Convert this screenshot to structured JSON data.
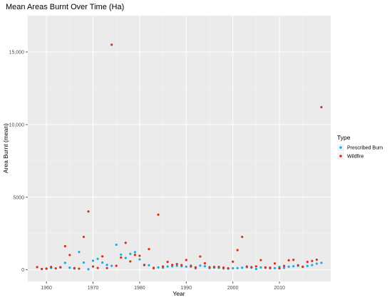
{
  "chart_data": {
    "type": "scatter",
    "title": "Mean Areas Burnt Over Time (Ha)",
    "xlabel": "Year",
    "ylabel": "Area Burnt (mean)",
    "xlim": [
      1956,
      2021
    ],
    "ylim": [
      -800,
      17500
    ],
    "x_ticks": [
      1960,
      1970,
      1980,
      1990,
      2000,
      2010
    ],
    "x_tick_labels": [
      "1960",
      "1970",
      "1980",
      "1990",
      "2000",
      "2010"
    ],
    "y_ticks": [
      0,
      5000,
      10000,
      15000
    ],
    "y_tick_labels": [
      "0",
      "5000",
      "10,000",
      "15,000"
    ],
    "grid": true,
    "legend": {
      "title": "Type",
      "position": "right",
      "entries": [
        "Prescribed Burn",
        "Wildfire"
      ]
    },
    "colors": {
      "panel_bg": "#ebebeb",
      "grid_major": "#ffffff",
      "grid_minor": "#f5f5f5",
      "Prescribed Burn": "#1ca9e0",
      "Wildfire": "#d7301f"
    },
    "series": [
      {
        "name": "Prescribed Burn",
        "points": [
          [
            1959,
            60
          ],
          [
            1960,
            70
          ],
          [
            1961,
            130
          ],
          [
            1963,
            170
          ],
          [
            1964,
            480
          ],
          [
            1965,
            150
          ],
          [
            1966,
            90
          ],
          [
            1967,
            1230
          ],
          [
            1968,
            500
          ],
          [
            1969,
            40
          ],
          [
            1970,
            630
          ],
          [
            1971,
            760
          ],
          [
            1972,
            500
          ],
          [
            1973,
            340
          ],
          [
            1974,
            280
          ],
          [
            1975,
            1730
          ],
          [
            1976,
            1050
          ],
          [
            1977,
            820
          ],
          [
            1978,
            1100
          ],
          [
            1979,
            1220
          ],
          [
            1980,
            720
          ],
          [
            1981,
            350
          ],
          [
            1982,
            320
          ],
          [
            1983,
            100
          ],
          [
            1984,
            170
          ],
          [
            1985,
            150
          ],
          [
            1986,
            230
          ],
          [
            1987,
            240
          ],
          [
            1988,
            280
          ],
          [
            1989,
            250
          ],
          [
            1990,
            220
          ],
          [
            1991,
            300
          ],
          [
            1992,
            100
          ],
          [
            1993,
            290
          ],
          [
            1994,
            250
          ],
          [
            1995,
            120
          ],
          [
            1996,
            150
          ],
          [
            1997,
            140
          ],
          [
            1998,
            90
          ],
          [
            1999,
            80
          ],
          [
            2000,
            110
          ],
          [
            2001,
            120
          ],
          [
            2002,
            150
          ],
          [
            2003,
            180
          ],
          [
            2004,
            150
          ],
          [
            2005,
            60
          ],
          [
            2006,
            170
          ],
          [
            2007,
            140
          ],
          [
            2008,
            100
          ],
          [
            2009,
            120
          ],
          [
            2010,
            200
          ],
          [
            2011,
            130
          ],
          [
            2012,
            220
          ],
          [
            2013,
            250
          ],
          [
            2014,
            280
          ],
          [
            2015,
            200
          ],
          [
            2016,
            270
          ],
          [
            2017,
            330
          ],
          [
            2018,
            430
          ],
          [
            2019,
            480
          ]
        ]
      },
      {
        "name": "Wildfire",
        "points": [
          [
            1958,
            190
          ],
          [
            1959,
            60
          ],
          [
            1960,
            90
          ],
          [
            1961,
            200
          ],
          [
            1962,
            100
          ],
          [
            1963,
            180
          ],
          [
            1964,
            1630
          ],
          [
            1965,
            1020
          ],
          [
            1966,
            120
          ],
          [
            1967,
            80
          ],
          [
            1968,
            2270
          ],
          [
            1969,
            4020
          ],
          [
            1970,
            230
          ],
          [
            1971,
            130
          ],
          [
            1972,
            930
          ],
          [
            1973,
            120
          ],
          [
            1974,
            15500
          ],
          [
            1975,
            280
          ],
          [
            1976,
            850
          ],
          [
            1977,
            1860
          ],
          [
            1978,
            580
          ],
          [
            1979,
            1030
          ],
          [
            1980,
            970
          ],
          [
            1981,
            330
          ],
          [
            1982,
            1430
          ],
          [
            1983,
            140
          ],
          [
            1984,
            3800
          ],
          [
            1985,
            230
          ],
          [
            1986,
            550
          ],
          [
            1987,
            340
          ],
          [
            1988,
            400
          ],
          [
            1989,
            330
          ],
          [
            1990,
            680
          ],
          [
            1991,
            230
          ],
          [
            1992,
            170
          ],
          [
            1993,
            920
          ],
          [
            1994,
            450
          ],
          [
            1995,
            180
          ],
          [
            1996,
            200
          ],
          [
            1997,
            200
          ],
          [
            1998,
            150
          ],
          [
            1999,
            110
          ],
          [
            2000,
            560
          ],
          [
            2001,
            1360
          ],
          [
            2002,
            2270
          ],
          [
            2003,
            230
          ],
          [
            2004,
            190
          ],
          [
            2005,
            240
          ],
          [
            2006,
            670
          ],
          [
            2007,
            170
          ],
          [
            2008,
            150
          ],
          [
            2009,
            440
          ],
          [
            2010,
            100
          ],
          [
            2011,
            270
          ],
          [
            2012,
            660
          ],
          [
            2013,
            690
          ],
          [
            2014,
            320
          ],
          [
            2015,
            220
          ],
          [
            2016,
            550
          ],
          [
            2017,
            610
          ],
          [
            2018,
            700
          ],
          [
            2019,
            11200
          ]
        ]
      }
    ]
  }
}
